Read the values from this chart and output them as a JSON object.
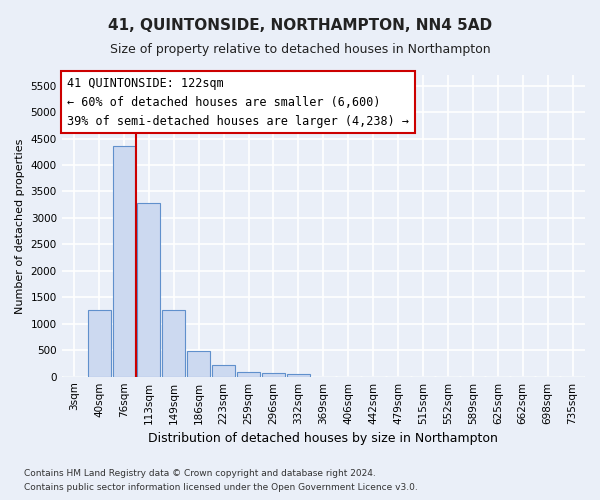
{
  "title": "41, QUINTONSIDE, NORTHAMPTON, NN4 5AD",
  "subtitle": "Size of property relative to detached houses in Northampton",
  "xlabel": "Distribution of detached houses by size in Northampton",
  "ylabel": "Number of detached properties",
  "footer1": "Contains HM Land Registry data © Crown copyright and database right 2024.",
  "footer2": "Contains public sector information licensed under the Open Government Licence v3.0.",
  "property_label": "41 QUINTONSIDE: 122sqm",
  "annotation_line1": "← 60% of detached houses are smaller (6,600)",
  "annotation_line2": "39% of semi-detached houses are larger (4,238) →",
  "bar_color": "#ccd9f0",
  "bar_edge_color": "#6090cc",
  "redline_color": "#cc0000",
  "bin_labels": [
    "3sqm",
    "40sqm",
    "76sqm",
    "113sqm",
    "149sqm",
    "186sqm",
    "223sqm",
    "259sqm",
    "296sqm",
    "332sqm",
    "369sqm",
    "406sqm",
    "442sqm",
    "479sqm",
    "515sqm",
    "552sqm",
    "589sqm",
    "625sqm",
    "662sqm",
    "698sqm",
    "735sqm"
  ],
  "bar_values": [
    0,
    1260,
    4350,
    3290,
    1265,
    490,
    230,
    95,
    75,
    55,
    0,
    0,
    0,
    0,
    0,
    0,
    0,
    0,
    0,
    0,
    0
  ],
  "ylim": [
    0,
    5700
  ],
  "yticks": [
    0,
    500,
    1000,
    1500,
    2000,
    2500,
    3000,
    3500,
    4000,
    4500,
    5000,
    5500
  ],
  "redline_bin_index": 2.5,
  "background_color": "#eaeff8",
  "grid_color": "#ffffff",
  "figsize": [
    6.0,
    5.0
  ],
  "dpi": 100,
  "title_fontsize": 11,
  "subtitle_fontsize": 9,
  "ylabel_fontsize": 8,
  "xlabel_fontsize": 9,
  "tick_fontsize": 7.5,
  "footer_fontsize": 6.5,
  "annot_fontsize": 8.5
}
